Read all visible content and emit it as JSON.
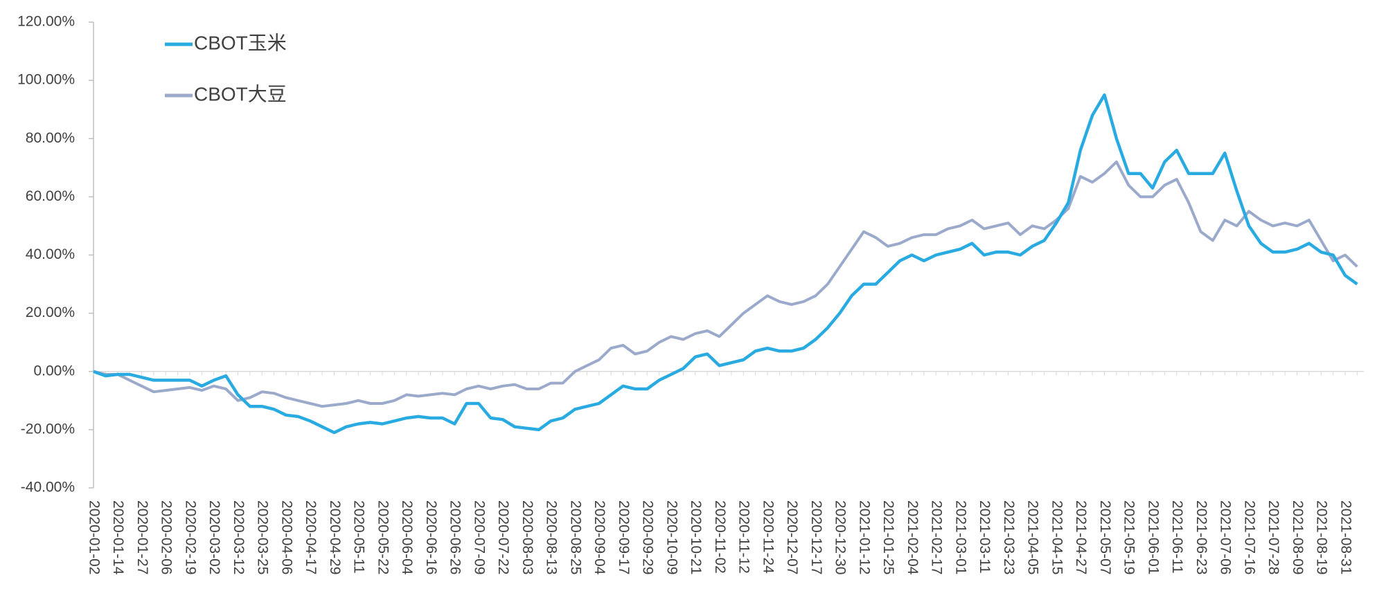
{
  "chart_data": {
    "type": "line",
    "categories": [
      "2020-01-02",
      null,
      "2020-01-14",
      null,
      "2020-01-27",
      null,
      "2020-02-06",
      null,
      "2020-02-19",
      null,
      "2020-03-02",
      null,
      "2020-03-12",
      null,
      "2020-03-25",
      null,
      "2020-04-06",
      null,
      "2020-04-17",
      null,
      "2020-04-29",
      null,
      "2020-05-11",
      null,
      "2020-05-22",
      null,
      "2020-06-04",
      null,
      "2020-06-16",
      null,
      "2020-06-26",
      null,
      "2020-07-09",
      null,
      "2020-07-22",
      null,
      "2020-08-03",
      null,
      "2020-08-13",
      null,
      "2020-08-25",
      null,
      "2020-09-04",
      null,
      "2020-09-17",
      null,
      "2020-09-29",
      null,
      "2020-10-09",
      null,
      "2020-10-21",
      null,
      "2020-11-02",
      null,
      "2020-11-12",
      null,
      "2020-11-24",
      null,
      "2020-12-07",
      null,
      "2020-12-17",
      null,
      "2020-12-30",
      null,
      "2021-01-12",
      null,
      "2021-01-25",
      null,
      "2021-02-04",
      null,
      "2021-02-17",
      null,
      "2021-03-01",
      null,
      "2021-03-11",
      null,
      "2021-03-23",
      null,
      "2021-04-05",
      null,
      "2021-04-15",
      null,
      "2021-04-27",
      null,
      "2021-05-07",
      null,
      "2021-05-19",
      null,
      "2021-06-01",
      null,
      "2021-06-11",
      null,
      "2021-06-23",
      null,
      "2021-07-06",
      null,
      "2021-07-16",
      null,
      "2021-07-28",
      null,
      "2021-08-09",
      null,
      "2021-08-19",
      null,
      "2021-08-31",
      null
    ],
    "series": [
      {
        "name": "CBOT玉米",
        "color": "#29abe2",
        "values": [
          0,
          -1.5,
          -1,
          -1,
          -2,
          -3,
          -3,
          -3,
          -3,
          -5,
          -3,
          -1.5,
          -8,
          -12,
          -12,
          -13,
          -15,
          -15.5,
          -17,
          -19,
          -21,
          -19,
          -18,
          -17.5,
          -18,
          -17,
          -16,
          -15.5,
          -16,
          -16,
          -18,
          -11,
          -11,
          -16,
          -16.5,
          -19,
          -19.5,
          -20,
          -17,
          -16,
          -13,
          -12,
          -11,
          -8,
          -5,
          -6,
          -6,
          -3,
          -1,
          1,
          5,
          6,
          2,
          3,
          4,
          7,
          8,
          7,
          7,
          8,
          11,
          15,
          20,
          26,
          30,
          30,
          34,
          38,
          40,
          38,
          40,
          41,
          42,
          44,
          40,
          41,
          41,
          40,
          43,
          45,
          51,
          58,
          76,
          88,
          95,
          80,
          68,
          68,
          63,
          72,
          76,
          68,
          68,
          68,
          75,
          62,
          50,
          44,
          41,
          41,
          42,
          44,
          41,
          40,
          33,
          30
        ]
      },
      {
        "name": "CBOT大豆",
        "color": "#9baacb",
        "values": [
          0,
          -1,
          -1,
          -3,
          -5,
          -7,
          -6.5,
          -6,
          -5.5,
          -6.5,
          -5,
          -6,
          -10,
          -9,
          -7,
          -7.5,
          -9,
          -10,
          -11,
          -12,
          -11.5,
          -11,
          -10,
          -11,
          -11,
          -10,
          -8,
          -8.5,
          -8,
          -7.5,
          -8,
          -6,
          -5,
          -6,
          -5,
          -4.5,
          -6,
          -6,
          -4,
          -4,
          0,
          2,
          4,
          8,
          9,
          6,
          7,
          10,
          12,
          11,
          13,
          14,
          12,
          16,
          20,
          23,
          26,
          24,
          23,
          24,
          26,
          30,
          36,
          42,
          48,
          46,
          43,
          44,
          46,
          47,
          47,
          49,
          50,
          52,
          49,
          50,
          51,
          47,
          50,
          49,
          52,
          56,
          67,
          65,
          68,
          72,
          64,
          60,
          60,
          64,
          66,
          58,
          48,
          45,
          52,
          50,
          55,
          52,
          50,
          51,
          50,
          52,
          45,
          38,
          40,
          36
        ]
      }
    ],
    "ylim": [
      -40,
      120
    ],
    "yticks": [
      {
        "value": -40,
        "label": "-40.00%"
      },
      {
        "value": -20,
        "label": "-20.00%"
      },
      {
        "value": 0,
        "label": "0.00%"
      },
      {
        "value": 20,
        "label": "20.00%"
      },
      {
        "value": 40,
        "label": "40.00%"
      },
      {
        "value": 60,
        "label": "60.00%"
      },
      {
        "value": 80,
        "label": "80.00%"
      },
      {
        "value": 100,
        "label": "100.00%"
      },
      {
        "value": 120,
        "label": "120.00%"
      }
    ],
    "legend": "upper left"
  }
}
